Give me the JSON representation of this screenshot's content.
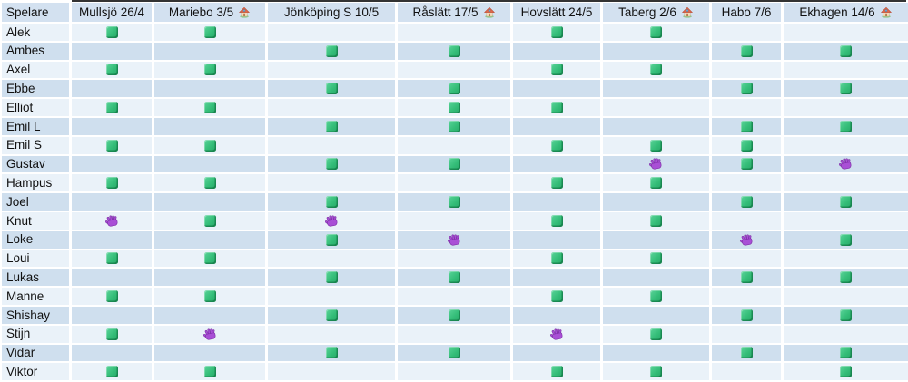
{
  "table": {
    "header": {
      "player_column_label": "Spelare",
      "matches": [
        {
          "label": "Mullsjö 26/4",
          "home": false
        },
        {
          "label": "Mariebo 3/5",
          "home": true
        },
        {
          "label": "Jönköping S 10/5",
          "home": false
        },
        {
          "label": "Råslätt 17/5",
          "home": true
        },
        {
          "label": "Hovslätt 24/5",
          "home": false
        },
        {
          "label": "Taberg 2/6",
          "home": true
        },
        {
          "label": "Habo 7/6",
          "home": false
        },
        {
          "label": "Ekhagen 14/6",
          "home": true
        }
      ]
    },
    "players": [
      {
        "name": "Alek",
        "marks": [
          "green",
          "green",
          "",
          "",
          "green",
          "green",
          "",
          ""
        ]
      },
      {
        "name": "Ambes",
        "marks": [
          "",
          "",
          "green",
          "green",
          "",
          "",
          "green",
          "green"
        ]
      },
      {
        "name": "Axel",
        "marks": [
          "green",
          "green",
          "",
          "",
          "green",
          "green",
          "",
          ""
        ]
      },
      {
        "name": "Ebbe",
        "marks": [
          "",
          "",
          "green",
          "green",
          "",
          "",
          "green",
          "green"
        ]
      },
      {
        "name": "Elliot",
        "marks": [
          "green",
          "green",
          "",
          "green",
          "green",
          "",
          "",
          ""
        ]
      },
      {
        "name": "Emil L",
        "marks": [
          "",
          "",
          "green",
          "green",
          "",
          "",
          "green",
          "green"
        ]
      },
      {
        "name": "Emil S",
        "marks": [
          "green",
          "green",
          "",
          "",
          "green",
          "green",
          "green",
          ""
        ]
      },
      {
        "name": "Gustav",
        "marks": [
          "",
          "",
          "green",
          "green",
          "",
          "glove",
          "green",
          "glove"
        ]
      },
      {
        "name": "Hampus",
        "marks": [
          "green",
          "green",
          "",
          "",
          "green",
          "green",
          "",
          ""
        ]
      },
      {
        "name": "Joel",
        "marks": [
          "",
          "",
          "green",
          "green",
          "",
          "",
          "green",
          "green"
        ]
      },
      {
        "name": "Knut",
        "marks": [
          "glove",
          "green",
          "glove",
          "",
          "green",
          "green",
          "",
          ""
        ]
      },
      {
        "name": "Loke",
        "marks": [
          "",
          "",
          "green",
          "glove",
          "",
          "",
          "glove",
          "green"
        ]
      },
      {
        "name": "Loui",
        "marks": [
          "green",
          "green",
          "",
          "",
          "green",
          "green",
          "",
          ""
        ]
      },
      {
        "name": "Lukas",
        "marks": [
          "",
          "",
          "green",
          "green",
          "",
          "",
          "green",
          "green"
        ]
      },
      {
        "name": "Manne",
        "marks": [
          "green",
          "green",
          "",
          "",
          "green",
          "green",
          "",
          ""
        ]
      },
      {
        "name": "Shishay",
        "marks": [
          "",
          "",
          "green",
          "green",
          "",
          "",
          "green",
          "green"
        ]
      },
      {
        "name": "Stijn",
        "marks": [
          "green",
          "glove",
          "",
          "",
          "glove",
          "green",
          "",
          ""
        ]
      },
      {
        "name": "Vidar",
        "marks": [
          "",
          "",
          "green",
          "green",
          "",
          "",
          "green",
          "green"
        ]
      },
      {
        "name": "Viktor",
        "marks": [
          "green",
          "green",
          "",
          "",
          "green",
          "green",
          "",
          "green"
        ]
      }
    ]
  },
  "icons": {
    "attending": "green-square-icon",
    "goalkeeper": "gloves-icon",
    "home_game": "house-icon"
  },
  "colors": {
    "header_bg": "#d3e1f0",
    "row_light": "#eaf2f9",
    "row_dark": "#cfdfee",
    "green_square": "#34bd78",
    "glove_purple": "#a94fd6",
    "top_border": "#333333"
  }
}
